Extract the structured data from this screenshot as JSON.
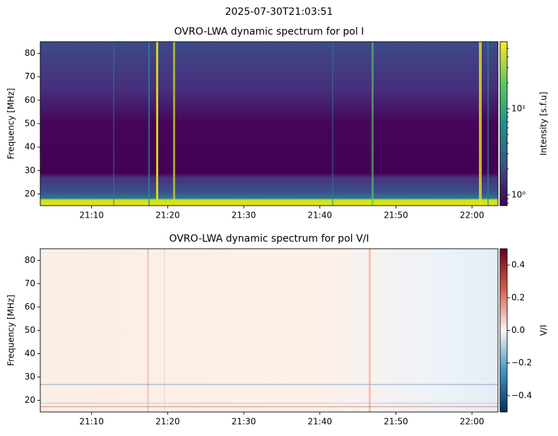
{
  "title": "2025-07-30T21:03:51",
  "chart_data": [
    {
      "type": "heatmap",
      "title": "OVRO-LWA dynamic spectrum for pol I",
      "ylabel": "Frequency [MHz]",
      "xlim": [
        "21:03:15",
        "22:03:25"
      ],
      "xticks": [
        "21:10",
        "21:20",
        "21:30",
        "21:40",
        "21:50",
        "22:00"
      ],
      "ylim": [
        15,
        85
      ],
      "yticks": [
        20,
        30,
        40,
        50,
        60,
        70,
        80
      ],
      "colorbar": {
        "label": "Intensity [s.f.u]",
        "colormap": "viridis",
        "scale": "log",
        "zlim": [
          0.75,
          60
        ],
        "ticks": [
          {
            "value": 1,
            "label": "10⁰"
          },
          {
            "value": 10,
            "label": "10¹"
          }
        ]
      }
    },
    {
      "type": "heatmap",
      "title": "OVRO-LWA dynamic spectrum for pol V/I",
      "ylabel": "Frequency [MHz]",
      "xlim": [
        "21:03:15",
        "22:03:25"
      ],
      "xticks": [
        "21:10",
        "21:20",
        "21:30",
        "21:40",
        "21:50",
        "22:00"
      ],
      "ylim": [
        15,
        85
      ],
      "yticks": [
        20,
        30,
        40,
        50,
        60,
        70,
        80
      ],
      "colorbar": {
        "label": "V/I",
        "colormap": "RdBu_r",
        "scale": "linear",
        "zlim": [
          -0.5,
          0.5
        ],
        "ticks": [
          0.4,
          0.2,
          {
            "value": 0,
            "label": "0.0"
          },
          {
            "value": -0.2,
            "label": "−0.2"
          },
          {
            "value": -0.4,
            "label": "−0.4"
          }
        ]
      }
    }
  ]
}
